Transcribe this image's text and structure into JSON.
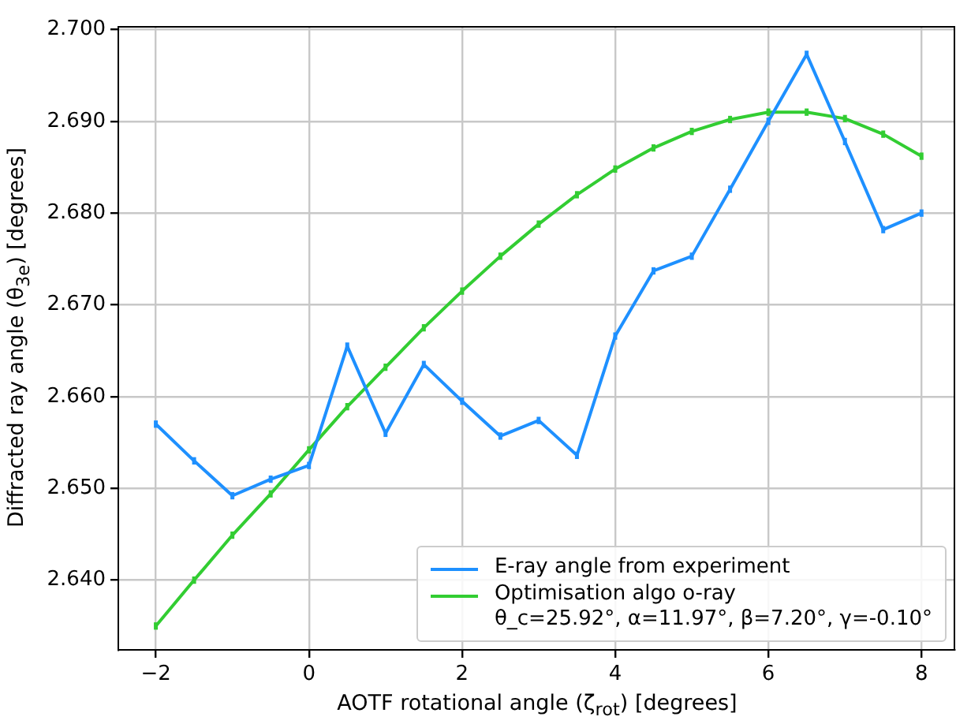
{
  "chart_data": {
    "type": "line",
    "xlabel": "AOTF rotational angle (ζ$_{rot}$) [degrees]",
    "ylabel": "Diffracted ray angle (θ$_{3e}$) [degrees]",
    "x": [
      -2,
      -1.5,
      -1,
      -0.5,
      0,
      0.5,
      1,
      1.5,
      2,
      2.5,
      3,
      3.5,
      4,
      4.5,
      5,
      5.5,
      6,
      6.5,
      7,
      7.5,
      8
    ],
    "series": [
      {
        "name": "E-ray angle from experiment",
        "color": "#1e90ff",
        "values": [
          2.657,
          2.653,
          2.6492,
          2.651,
          2.6525,
          2.6655,
          2.656,
          2.6635,
          2.6595,
          2.6557,
          2.6574,
          2.6536,
          2.6666,
          2.6737,
          2.6753,
          2.6826,
          2.69,
          2.6973,
          2.6878,
          2.6782,
          2.68
        ],
        "errors": [
          0.0004,
          0.0004,
          0.0004,
          0.0004,
          0.0004,
          0.0004,
          0.0004,
          0.0004,
          0.0004,
          0.0004,
          0.0004,
          0.0004,
          0.0004,
          0.0004,
          0.0004,
          0.0004,
          0.0004,
          0.0004,
          0.0004,
          0.0004,
          0.0004
        ]
      },
      {
        "name": "Optimisation algo o-ray\nθ_c=25.92°, α=11.97°, β=7.20°, γ=-0.10°",
        "color": "#32cd32",
        "values": [
          2.635,
          2.64,
          2.6449,
          2.6494,
          2.6542,
          2.6589,
          2.6632,
          2.6675,
          2.6715,
          2.6753,
          2.6788,
          2.682,
          2.6848,
          2.6871,
          2.6889,
          2.6902,
          2.691,
          2.691,
          2.6903,
          2.6886,
          2.6862
        ],
        "errors": [
          0.0004,
          0.0004,
          0.0004,
          0.0004,
          0.0004,
          0.0004,
          0.0004,
          0.0004,
          0.0004,
          0.0004,
          0.0004,
          0.0004,
          0.0004,
          0.0004,
          0.0004,
          0.0004,
          0.0004,
          0.0004,
          0.0004,
          0.0004,
          0.0004
        ]
      }
    ],
    "xlim": [
      -2.49,
      8.43
    ],
    "ylim": [
      2.6324,
      2.7003
    ],
    "xticks": [
      {
        "value": -2,
        "label": "−2"
      },
      0,
      2,
      4,
      6,
      8
    ],
    "yticks": [
      {
        "value": 2.64,
        "label": "2.640"
      },
      {
        "value": 2.65,
        "label": "2.650"
      },
      {
        "value": 2.66,
        "label": "2.660"
      },
      {
        "value": 2.67,
        "label": "2.670"
      },
      {
        "value": 2.68,
        "label": "2.680"
      },
      {
        "value": 2.69,
        "label": "2.690"
      },
      {
        "value": 2.7,
        "label": "2.700"
      }
    ],
    "grid": true,
    "legend": "bottom right",
    "marker": "none",
    "line_style": "solid"
  }
}
